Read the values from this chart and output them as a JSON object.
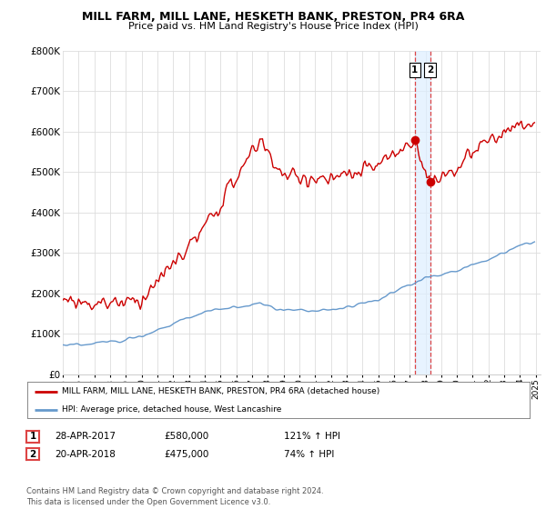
{
  "title": "MILL FARM, MILL LANE, HESKETH BANK, PRESTON, PR4 6RA",
  "subtitle": "Price paid vs. HM Land Registry's House Price Index (HPI)",
  "ylim": [
    0,
    800000
  ],
  "yticks": [
    0,
    100000,
    200000,
    300000,
    400000,
    500000,
    600000,
    700000,
    800000
  ],
  "ytick_labels": [
    "£0",
    "£100K",
    "£200K",
    "£300K",
    "£400K",
    "£500K",
    "£600K",
    "£700K",
    "£800K"
  ],
  "sale1_date": 2017.32,
  "sale1_price": 580000,
  "sale1_label": "1",
  "sale2_date": 2018.3,
  "sale2_price": 475000,
  "sale2_label": "2",
  "red_line_color": "#cc0000",
  "blue_line_color": "#6699cc",
  "dashed_line_color": "#dd4444",
  "shade_color": "#ddeeff",
  "legend1_text": "MILL FARM, MILL LANE, HESKETH BANK, PRESTON, PR4 6RA (detached house)",
  "legend2_text": "HPI: Average price, detached house, West Lancashire",
  "table_rows": [
    {
      "num": "1",
      "date": "28-APR-2017",
      "price": "£580,000",
      "pct": "121% ↑ HPI"
    },
    {
      "num": "2",
      "date": "20-APR-2018",
      "price": "£475,000",
      "pct": "74% ↑ HPI"
    }
  ],
  "footer": "Contains HM Land Registry data © Crown copyright and database right 2024.\nThis data is licensed under the Open Government Licence v3.0.",
  "background_color": "#ffffff",
  "grid_color": "#dddddd"
}
